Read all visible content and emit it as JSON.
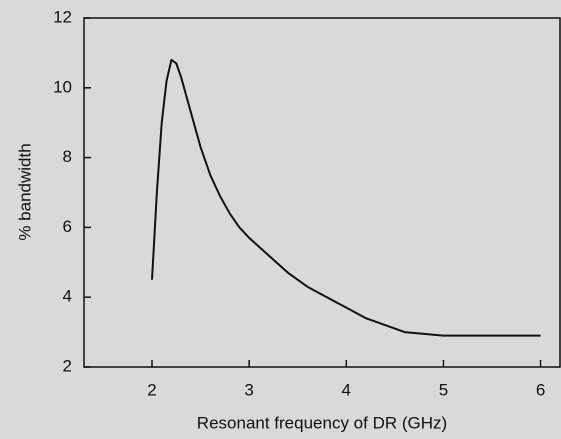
{
  "chart_data": {
    "type": "line",
    "xlabel": "Resonant frequency of DR (GHz)",
    "ylabel": "% bandwidth",
    "x": [
      2.0,
      2.05,
      2.1,
      2.15,
      2.2,
      2.25,
      2.3,
      2.4,
      2.5,
      2.6,
      2.7,
      2.8,
      2.9,
      3.0,
      3.2,
      3.4,
      3.6,
      3.8,
      4.0,
      4.2,
      4.4,
      4.6,
      4.8,
      5.0,
      5.5,
      6.0
    ],
    "series": [
      {
        "name": "bandwidth",
        "color": "#111111",
        "values": [
          4.5,
          7.0,
          9.0,
          10.2,
          10.8,
          10.7,
          10.3,
          9.3,
          8.3,
          7.5,
          6.9,
          6.4,
          6.0,
          5.7,
          5.2,
          4.7,
          4.3,
          4.0,
          3.7,
          3.4,
          3.2,
          3.0,
          2.95,
          2.9,
          2.9,
          2.9
        ]
      }
    ],
    "xlim": [
      1.3,
      6.2
    ],
    "xticks": [
      2,
      3,
      4,
      5,
      6
    ],
    "ylim": [
      2,
      12
    ],
    "yticks": [
      2,
      4,
      6,
      8,
      10,
      12
    ]
  }
}
